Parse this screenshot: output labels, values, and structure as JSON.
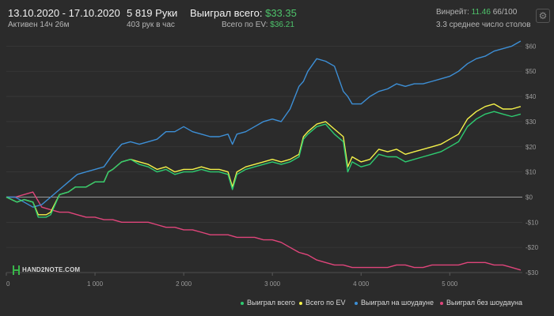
{
  "header": {
    "date_range": "13.10.2020 - 17.10.2020",
    "active_time": "Активен 14ч 26м",
    "hands": "5 819 Руки",
    "hands_per_hour": "403 рук в час",
    "won_total_label": "Выиграл всего:",
    "won_total_value": "$33.35",
    "ev_total_label": "Всего по EV:",
    "ev_total_value": "$36.21",
    "winrate_label": "Винрейт:",
    "winrate_value": "11.46",
    "winrate_extra": "66/100",
    "avg_tables": "3.3 среднее число столов"
  },
  "logo": {
    "text": "HAND2NOTE.COM"
  },
  "colors": {
    "background": "#2b2b2b",
    "won_total": "#2ecc71",
    "ev_total": "#f5f24a",
    "showdown": "#3d8fd6",
    "non_showdown": "#e0457b"
  },
  "chart_data": {
    "type": "line",
    "title": "",
    "xlabel": "",
    "ylabel": "",
    "xlim": [
      0,
      5819
    ],
    "ylim": [
      -30,
      62
    ],
    "x_ticks": [
      0,
      1000,
      2000,
      3000,
      4000,
      5000
    ],
    "x_tick_labels": [
      "0",
      "1 000",
      "2 000",
      "3 000",
      "4 000",
      "5 000"
    ],
    "y_ticks": [
      60,
      50,
      40,
      30,
      20,
      10,
      0,
      -10,
      -20,
      -30
    ],
    "y_tick_labels": [
      "$60",
      "$50",
      "$40",
      "$30",
      "$20",
      "$10",
      "$0",
      "-$10",
      "-$20",
      "-$30"
    ],
    "grid": true,
    "legend_position": "bottom-right",
    "series": [
      {
        "name": "Выиграл всего",
        "color": "#2ecc71",
        "x": [
          0,
          120,
          200,
          300,
          360,
          450,
          500,
          600,
          700,
          780,
          900,
          1000,
          1100,
          1150,
          1200,
          1300,
          1400,
          1500,
          1600,
          1700,
          1800,
          1900,
          2000,
          2100,
          2200,
          2300,
          2400,
          2500,
          2550,
          2600,
          2700,
          2800,
          2900,
          3000,
          3100,
          3200,
          3300,
          3350,
          3400,
          3500,
          3600,
          3700,
          3800,
          3850,
          3900,
          4000,
          4100,
          4200,
          4300,
          4400,
          4500,
          4600,
          4700,
          4800,
          4900,
          5000,
          5100,
          5200,
          5300,
          5400,
          5500,
          5600,
          5700,
          5800
        ],
        "y": [
          0,
          -2,
          -1,
          -2,
          -8,
          -8,
          -7,
          1,
          2,
          4,
          4,
          6,
          6,
          10,
          11,
          14,
          15,
          13,
          12,
          10,
          11,
          9,
          10,
          10,
          11,
          10,
          10,
          9,
          3,
          9,
          11,
          12,
          13,
          14,
          13,
          14,
          16,
          23,
          25,
          28,
          29,
          25,
          22,
          10,
          14,
          12,
          13,
          17,
          16,
          16,
          14,
          15,
          16,
          17,
          18,
          20,
          22,
          28,
          31,
          33,
          34,
          33,
          32,
          33
        ]
      },
      {
        "name": "Всего по EV",
        "color": "#f5f24a",
        "x": [
          0,
          120,
          200,
          300,
          360,
          450,
          500,
          600,
          700,
          780,
          900,
          1000,
          1100,
          1150,
          1200,
          1300,
          1400,
          1500,
          1600,
          1700,
          1800,
          1900,
          2000,
          2100,
          2200,
          2300,
          2400,
          2500,
          2550,
          2600,
          2700,
          2800,
          2900,
          3000,
          3100,
          3200,
          3300,
          3350,
          3400,
          3500,
          3600,
          3700,
          3800,
          3850,
          3900,
          4000,
          4100,
          4200,
          4300,
          4400,
          4500,
          4600,
          4700,
          4800,
          4900,
          5000,
          5100,
          5200,
          5300,
          5400,
          5500,
          5600,
          5700,
          5800
        ],
        "y": [
          0,
          -2,
          -1,
          -2,
          -7,
          -7,
          -6,
          1,
          2,
          4,
          4,
          6,
          6,
          10,
          11,
          14,
          15,
          14,
          13,
          11,
          12,
          10,
          11,
          11,
          12,
          11,
          11,
          10,
          4,
          10,
          12,
          13,
          14,
          15,
          14,
          15,
          17,
          24,
          26,
          29,
          30,
          27,
          24,
          12,
          16,
          14,
          15,
          19,
          18,
          19,
          17,
          18,
          19,
          20,
          21,
          23,
          25,
          31,
          34,
          36,
          37,
          35,
          35,
          36
        ]
      },
      {
        "name": "Выиграл на шоудауне",
        "color": "#3d8fd6",
        "x": [
          0,
          100,
          200,
          300,
          400,
          500,
          600,
          700,
          800,
          900,
          1000,
          1100,
          1200,
          1300,
          1400,
          1500,
          1600,
          1700,
          1800,
          1900,
          2000,
          2100,
          2200,
          2300,
          2400,
          2500,
          2550,
          2600,
          2700,
          2800,
          2900,
          3000,
          3100,
          3200,
          3300,
          3350,
          3400,
          3500,
          3600,
          3700,
          3800,
          3850,
          3900,
          4000,
          4100,
          4200,
          4300,
          4400,
          4500,
          4600,
          4700,
          4800,
          4900,
          5000,
          5100,
          5200,
          5300,
          5400,
          5500,
          5600,
          5700,
          5800
        ],
        "y": [
          0,
          0,
          -2,
          -4,
          -3,
          0,
          3,
          6,
          9,
          10,
          11,
          12,
          17,
          21,
          22,
          21,
          22,
          23,
          26,
          26,
          28,
          26,
          25,
          24,
          24,
          25,
          21,
          25,
          26,
          28,
          30,
          31,
          30,
          35,
          44,
          46,
          50,
          55,
          54,
          52,
          42,
          40,
          37,
          37,
          40,
          42,
          43,
          45,
          44,
          45,
          45,
          46,
          47,
          48,
          50,
          53,
          55,
          56,
          58,
          59,
          60,
          62
        ]
      },
      {
        "name": "Выиграл без шоудауна",
        "color": "#e0457b",
        "x": [
          0,
          100,
          200,
          300,
          400,
          500,
          600,
          700,
          800,
          900,
          1000,
          1100,
          1200,
          1300,
          1400,
          1500,
          1600,
          1700,
          1800,
          1900,
          2000,
          2100,
          2200,
          2300,
          2400,
          2500,
          2600,
          2700,
          2800,
          2900,
          3000,
          3100,
          3200,
          3300,
          3400,
          3500,
          3600,
          3700,
          3800,
          3900,
          4000,
          4100,
          4200,
          4300,
          4400,
          4500,
          4600,
          4700,
          4800,
          4900,
          5000,
          5100,
          5200,
          5300,
          5400,
          5500,
          5600,
          5700,
          5800
        ],
        "y": [
          0,
          0,
          1,
          2,
          -4,
          -5,
          -6,
          -6,
          -7,
          -8,
          -8,
          -9,
          -9,
          -10,
          -10,
          -10,
          -10,
          -11,
          -12,
          -12,
          -13,
          -13,
          -14,
          -15,
          -15,
          -15,
          -16,
          -16,
          -16,
          -17,
          -17,
          -18,
          -20,
          -22,
          -23,
          -25,
          -26,
          -27,
          -27,
          -28,
          -28,
          -28,
          -28,
          -28,
          -27,
          -27,
          -28,
          -28,
          -27,
          -27,
          -27,
          -27,
          -26,
          -26,
          -26,
          -27,
          -27,
          -28,
          -29
        ]
      }
    ]
  }
}
